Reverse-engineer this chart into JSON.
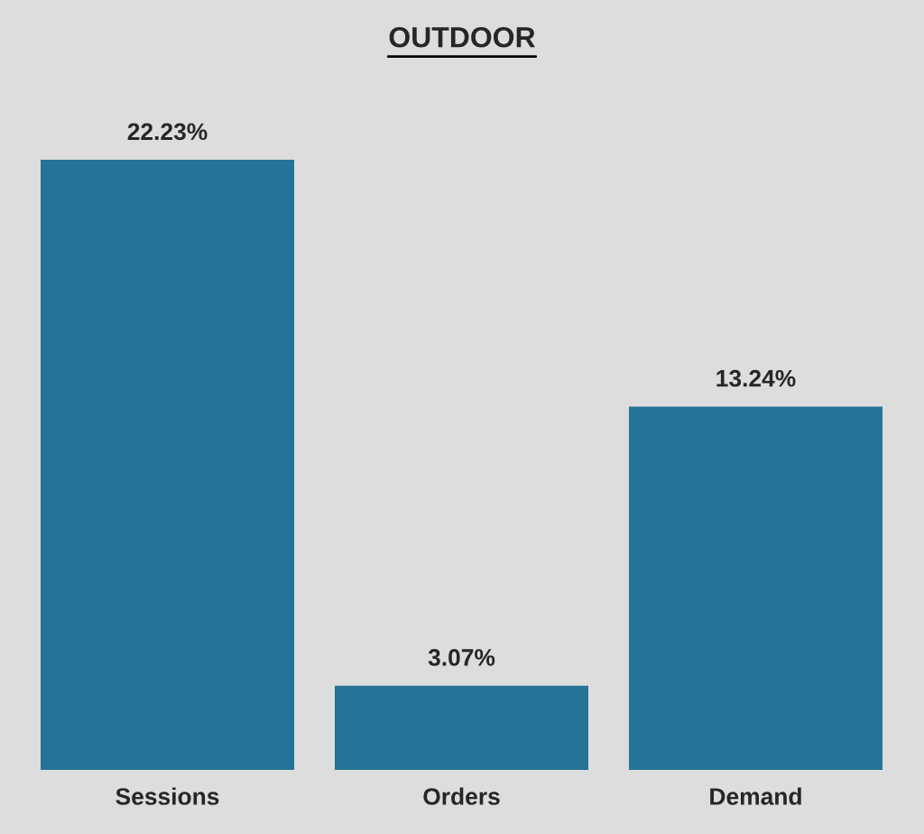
{
  "chart_data": {
    "type": "bar",
    "title": "OUTDOOR",
    "categories": [
      "Sessions",
      "Orders",
      "Demand"
    ],
    "values": [
      22.23,
      3.07,
      13.24
    ],
    "value_labels": [
      "22.23%",
      "3.07%",
      "13.24%"
    ],
    "color": "#257396",
    "grid": false
  }
}
